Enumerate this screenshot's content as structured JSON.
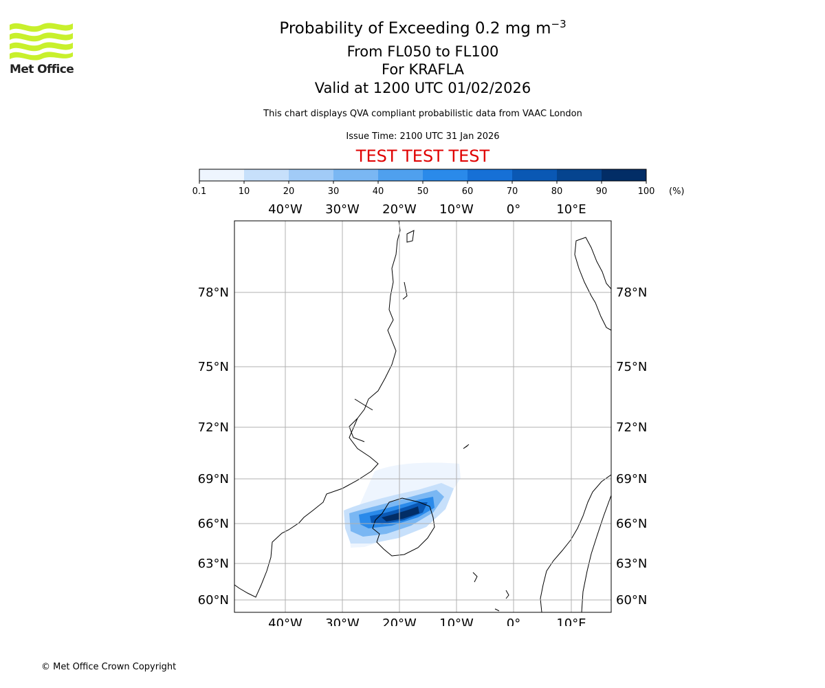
{
  "header": {
    "title_main": "Probability of Exceeding 0.2 mg m",
    "title_sup": "−3",
    "title_levels": "From FL050 to FL100",
    "title_volcano": "For KRAFLA",
    "title_valid": "Valid at 1200 UTC 01/02/2026",
    "note": "This chart displays QVA compliant probabilistic data from VAAC London",
    "issue_time": "Issue Time: 2100 UTC 31 Jan 2026",
    "test_banner": "TEST TEST TEST"
  },
  "logo": {
    "text": "Met Office",
    "color": "#c8f02c"
  },
  "colorbar": {
    "ticks": [
      "0.1",
      "10",
      "20",
      "30",
      "40",
      "50",
      "60",
      "70",
      "80",
      "90",
      "100"
    ],
    "unit": "(%)",
    "colors": [
      "#eef5fe",
      "#c7e0fb",
      "#a1cbf7",
      "#7ab7f3",
      "#4fa0ee",
      "#2a8aea",
      "#1670d6",
      "#0a58b4",
      "#05448f",
      "#022d66"
    ]
  },
  "map": {
    "lon_labels": [
      "40°W",
      "30°W",
      "20°W",
      "10°W",
      "0°",
      "10°E"
    ],
    "lat_labels": [
      "78°N",
      "75°N",
      "72°N",
      "69°N",
      "66°N",
      "63°N",
      "60°N"
    ]
  },
  "footer": {
    "copyright": "© Met Office Crown Copyright"
  }
}
